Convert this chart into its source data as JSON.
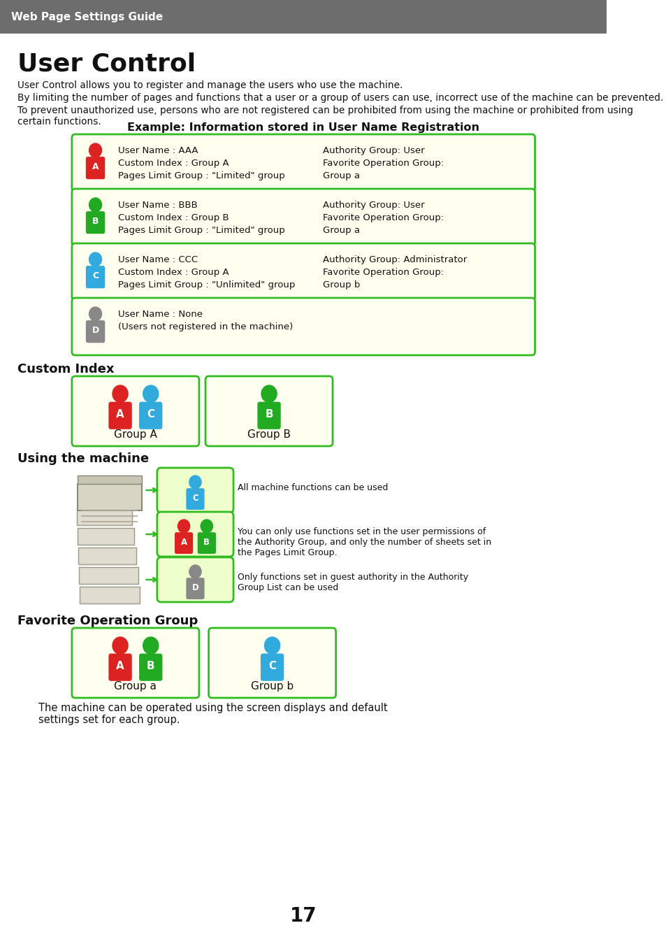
{
  "header_bg": "#6d6d6d",
  "header_text": "Web Page Settings Guide",
  "header_text_color": "#ffffff",
  "page_bg": "#ffffff",
  "title": "User Control",
  "intro_lines": [
    "User Control allows you to register and manage the users who use the machine.",
    "By limiting the number of pages and functions that a user or a group of users can use, incorrect use of the machine can be prevented.",
    "To prevent unauthorized use, persons who are not registered can be prohibited from using the machine or prohibited from using certain functions."
  ],
  "example_title": "Example: Information stored in User Name Registration",
  "box_bg": "#fffff0",
  "box_border": "#33bb22",
  "user_rows": [
    {
      "icon_color": "#dd2222",
      "label": "A",
      "left_lines": [
        "User Name : AAA",
        "Custom Index : Group A",
        "Pages Limit Group : \"Limited\" group"
      ],
      "right_lines": [
        "Authority Group: User",
        "Favorite Operation Group:",
        "Group a"
      ]
    },
    {
      "icon_color": "#22aa22",
      "label": "B",
      "left_lines": [
        "User Name : BBB",
        "Custom Index : Group B",
        "Pages Limit Group : \"Limited\" group"
      ],
      "right_lines": [
        "Authority Group: User",
        "Favorite Operation Group:",
        "Group a"
      ]
    },
    {
      "icon_color": "#33aadd",
      "label": "C",
      "left_lines": [
        "User Name : CCC",
        "Custom Index : Group A",
        "Pages Limit Group : \"Unlimited\" group"
      ],
      "right_lines": [
        "Authority Group: Administrator",
        "Favorite Operation Group:",
        "Group b"
      ]
    },
    {
      "icon_color": "#888888",
      "label": "D",
      "left_lines": [
        "User Name : None",
        "(Users not registered in the machine)"
      ],
      "right_lines": []
    }
  ],
  "custom_index_title": "Custom Index",
  "ci_groups": [
    {
      "label": "Group A",
      "icons": [
        {
          "color": "#dd2222",
          "letter": "A"
        },
        {
          "color": "#33aadd",
          "letter": "C"
        }
      ]
    },
    {
      "label": "Group B",
      "icons": [
        {
          "color": "#22aa22",
          "letter": "B"
        }
      ]
    }
  ],
  "using_machine_title": "Using the machine",
  "using_rows": [
    {
      "type": "single",
      "icon_color": "#33aadd",
      "letter": "C",
      "text": "All machine functions can be used"
    },
    {
      "type": "double",
      "icon_colors": [
        "#dd2222",
        "#22aa22"
      ],
      "letters": [
        "A",
        "B"
      ],
      "text": "You can only use functions set in the user permissions of\nthe Authority Group, and only the number of sheets set in\nthe Pages Limit Group."
    },
    {
      "type": "single",
      "icon_color": "#888888",
      "letter": "D",
      "text": "Only functions set in guest authority in the Authority\nGroup List can be used"
    }
  ],
  "fav_op_title": "Favorite Operation Group",
  "fav_groups": [
    {
      "label": "Group a",
      "icons": [
        {
          "color": "#dd2222",
          "letter": "A"
        },
        {
          "color": "#22aa22",
          "letter": "B"
        }
      ]
    },
    {
      "label": "Group b",
      "icons": [
        {
          "color": "#33aadd",
          "letter": "C"
        }
      ]
    }
  ],
  "fav_text": "The machine can be operated using the screen displays and default\nsettings set for each group.",
  "page_number": "17"
}
